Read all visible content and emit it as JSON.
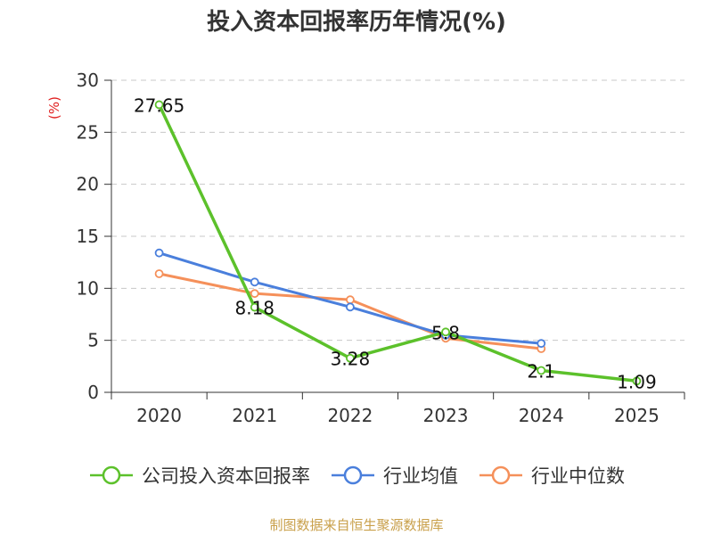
{
  "title": "投入资本回报率历年情况(%)",
  "source": "制图数据来自恒生聚源数据库",
  "colors": {
    "company": "#5cc12b",
    "industry_avg": "#4a7fdc",
    "industry_median": "#f5905a",
    "unit": "#e02020"
  },
  "chart_data": {
    "type": "line",
    "title": "投入资本回报率历年情况(%)",
    "ylabel": "(%)",
    "xlabel": "",
    "categories": [
      "2020",
      "2021",
      "2022",
      "2023",
      "2024",
      "2025"
    ],
    "ylim": [
      0,
      30
    ],
    "yticks": [
      0,
      5,
      10,
      15,
      20,
      25,
      30
    ],
    "grid": true,
    "legend_position": "bottom",
    "series": [
      {
        "key": "company",
        "name": "公司投入资本回报率",
        "values": [
          27.65,
          8.18,
          3.28,
          5.8,
          2.1,
          1.09
        ],
        "labels": [
          "27.65",
          "8.18",
          "3.28",
          "5.8",
          "2.1",
          "1.09"
        ]
      },
      {
        "key": "industry_avg",
        "name": "行业均值",
        "values": [
          13.4,
          10.6,
          8.2,
          5.5,
          4.7,
          null
        ]
      },
      {
        "key": "industry_median",
        "name": "行业中位数",
        "values": [
          11.4,
          9.5,
          8.9,
          5.2,
          4.2,
          null
        ]
      }
    ]
  }
}
